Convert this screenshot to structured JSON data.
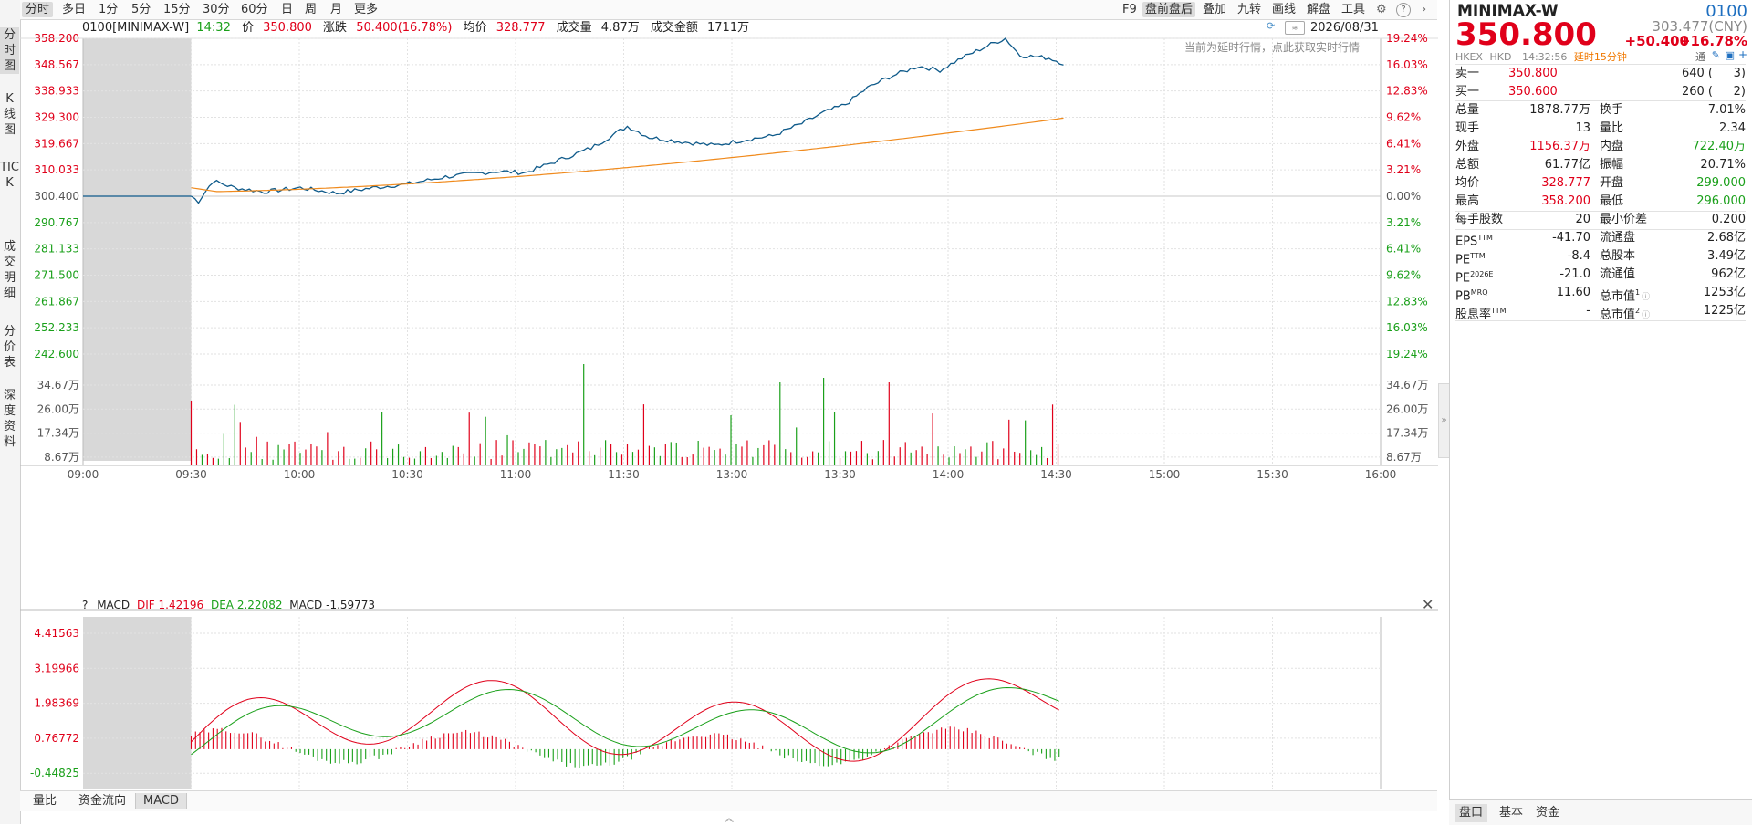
{
  "toolbar": {
    "period_tabs": [
      "分时",
      "多日",
      "1分",
      "5分",
      "15分",
      "30分",
      "60分",
      "日",
      "周",
      "月",
      "更多"
    ],
    "right_tools": [
      "F9",
      "盘前盘后",
      "叠加",
      "九转",
      "画线",
      "解盘",
      "工具"
    ]
  },
  "left_tabs": [
    "分时图",
    "K线图",
    "TICK",
    "成交明细",
    "分价表",
    "深度资料"
  ],
  "info": {
    "code_name": "0100[MINIMAX-W]",
    "time": "14:32",
    "price_label": "价",
    "price": "350.800",
    "change_label": "涨跌",
    "change": "50.400(16.78%)",
    "avg_label": "均价",
    "avg": "328.777",
    "vol_label": "成交量",
    "vol": "4.87万",
    "amount_label": "成交金额",
    "amount": "1711万",
    "date": "2026/08/31",
    "delay_notice": "当前为延时行情，点此获取实时行情"
  },
  "price_axis": {
    "left": [
      "358.200",
      "348.567",
      "338.933",
      "329.300",
      "319.667",
      "310.033",
      "300.400",
      "290.767",
      "281.133",
      "271.500",
      "261.867",
      "252.233",
      "242.600"
    ],
    "right": [
      "19.24%",
      "16.03%",
      "12.83%",
      "9.62%",
      "6.41%",
      "3.21%",
      "0.00%",
      "3.21%",
      "6.41%",
      "9.62%",
      "12.83%",
      "16.03%",
      "19.24%"
    ]
  },
  "volume_axis": {
    "left": [
      "34.67万",
      "26.00万",
      "17.34万",
      "8.67万"
    ],
    "right": [
      "34.67万",
      "26.00万",
      "17.34万",
      "8.67万"
    ]
  },
  "time_axis": [
    "09:00",
    "09:30",
    "10:00",
    "10:30",
    "11:00",
    "11:30",
    "13:00",
    "13:30",
    "14:00",
    "14:30",
    "15:00",
    "15:30",
    "16:00"
  ],
  "macd": {
    "help": "?",
    "name": "MACD",
    "dif_label": "DIF",
    "dif": "1.42196",
    "dea_label": "DEA",
    "dea": "2.22082",
    "macd_label": "MACD",
    "macd": "-1.59773",
    "axis": [
      "4.41563",
      "3.19966",
      "1.98369",
      "0.76772",
      "-0.44825"
    ]
  },
  "bottom_tabs": [
    "量比",
    "资金流向",
    "MACD"
  ],
  "colors": {
    "up": "#e0001a",
    "down": "#1aa01a",
    "price_line": "#0e5a8a",
    "avg_line": "#f08a1c",
    "dif_line": "#e0001a",
    "dea_line": "#1aa01a"
  },
  "chart_data": {
    "type": "line",
    "x": [
      "09:00",
      "09:30",
      "10:00",
      "10:30",
      "11:00",
      "11:30",
      "13:00",
      "13:30",
      "14:00",
      "14:30"
    ],
    "series": [],
    "ylim": [
      242.6,
      358.2
    ]
  },
  "quote": {
    "name": "MINIMAX-W",
    "code": "0100",
    "price": "350.800",
    "prev": "303.477(CNY)",
    "change": "+50.400",
    "change_pct": "+16.78%",
    "market": "HKEX",
    "currency": "HKD",
    "qtime": "14:32:56",
    "delay": "延时15分钟",
    "icon_label": "通",
    "ask_label": "卖一",
    "ask_price": "350.800",
    "ask_vol": "640 (",
    "ask_cnt": "3)",
    "bid_label": "买一",
    "bid_price": "350.600",
    "bid_vol": "260 (",
    "bid_cnt": "2)",
    "stats": [
      {
        "k1": "总量",
        "v1": "1878.77万",
        "c1": "blk",
        "k2": "换手",
        "v2": "7.01%",
        "c2": "blk"
      },
      {
        "k1": "现手",
        "v1": "13",
        "c1": "blk",
        "k2": "量比",
        "v2": "2.34",
        "c2": "blk"
      },
      {
        "k1": "外盘",
        "v1": "1156.37万",
        "c1": "red",
        "k2": "内盘",
        "v2": "722.40万",
        "c2": "green"
      },
      {
        "k1": "总额",
        "v1": "61.77亿",
        "c1": "blk",
        "k2": "振幅",
        "v2": "20.71%",
        "c2": "blk"
      },
      {
        "k1": "均价",
        "v1": "328.777",
        "c1": "red",
        "k2": "开盘",
        "v2": "299.000",
        "c2": "green"
      },
      {
        "k1": "最高",
        "v1": "358.200",
        "c1": "red",
        "k2": "最低",
        "v2": "296.000",
        "c2": "green"
      }
    ],
    "stats2": [
      {
        "k1": "每手股数",
        "v1": "20",
        "k2": "最小价差",
        "v2": "0.200"
      }
    ],
    "stats3": [
      {
        "k1": "EPS",
        "s1": "TTM",
        "v1": "-41.70",
        "k2": "流通盘",
        "s2": "",
        "v2": "2.68亿"
      },
      {
        "k1": "PE",
        "s1": "TTM",
        "v1": "-8.4",
        "k2": "总股本",
        "s2": "",
        "v2": "3.49亿"
      },
      {
        "k1": "PE",
        "s1": "2026E",
        "v1": "-21.0",
        "k2": "流通值",
        "s2": "",
        "v2": "962亿"
      },
      {
        "k1": "PB",
        "s1": "MRQ",
        "v1": "11.60",
        "k2": "总市值",
        "s2": "1",
        "v2": "1253亿"
      },
      {
        "k1": "股息率",
        "s1": "TTM",
        "v1": "-",
        "k2": "总市值",
        "s2": "2",
        "v2": "1225亿"
      }
    ],
    "bottom_tabs": [
      "盘口",
      "基本",
      "资金"
    ]
  }
}
